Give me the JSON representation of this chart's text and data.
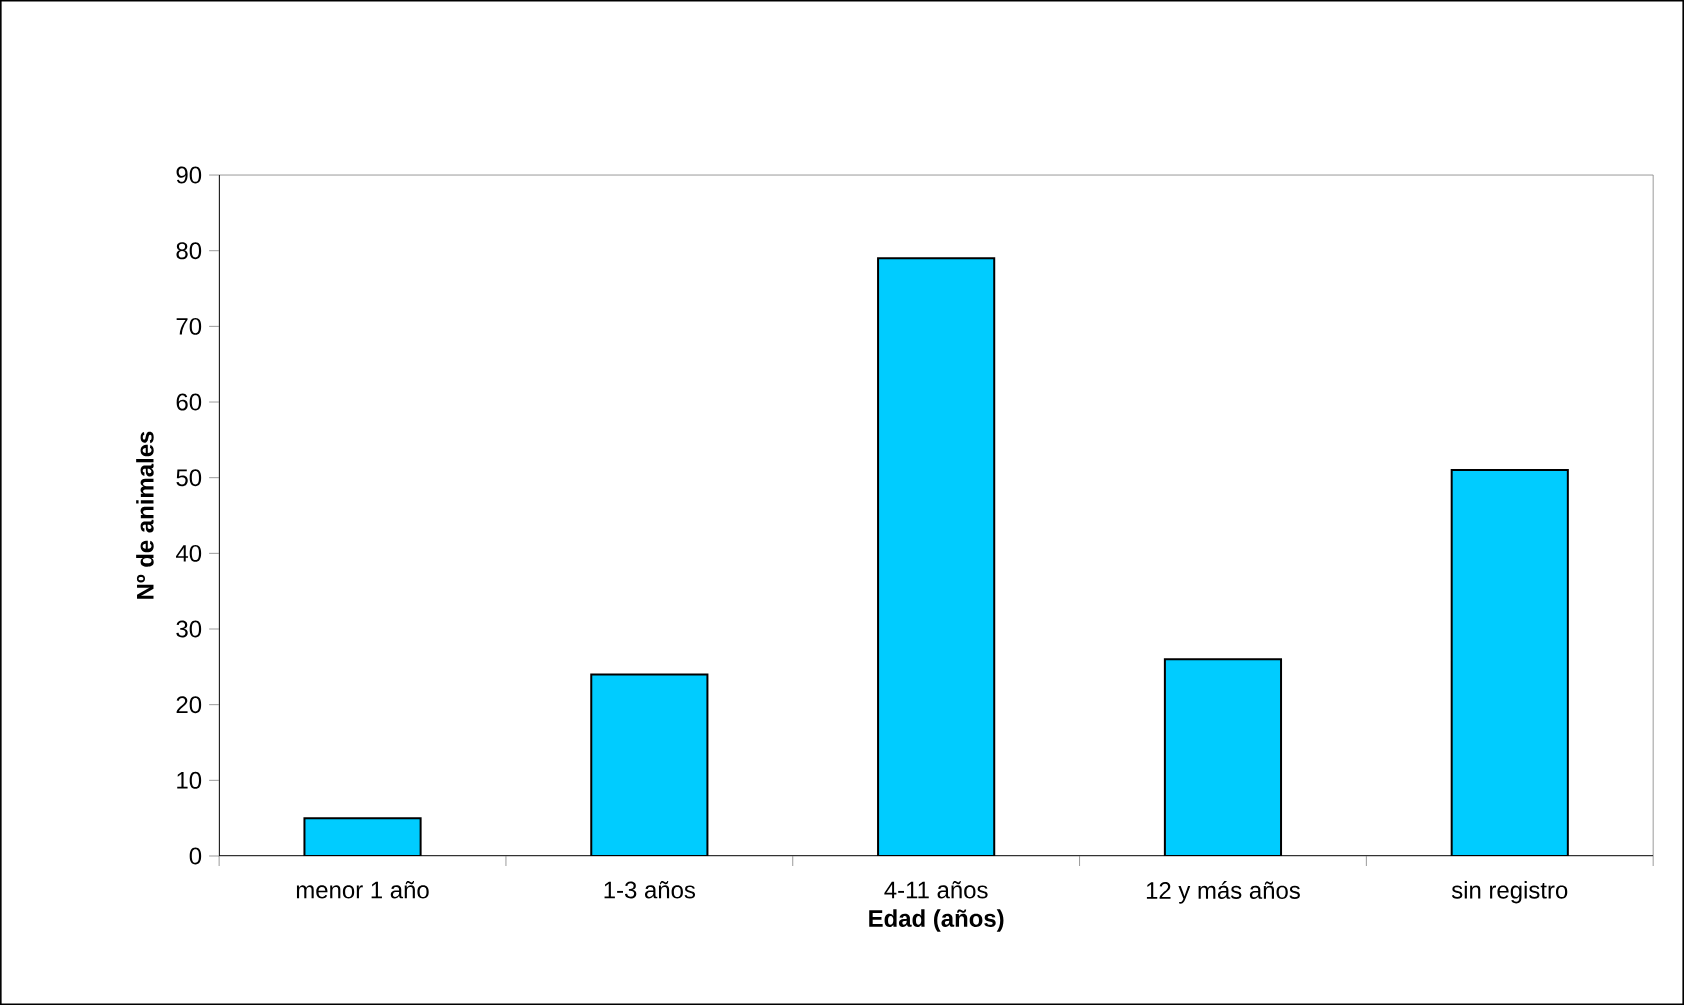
{
  "chart_data": {
    "type": "bar",
    "categories": [
      "menor 1 año",
      "1-3 años",
      "4-11 años",
      "12 y más años",
      "sin registro"
    ],
    "values": [
      5,
      24,
      79,
      26,
      51
    ],
    "color": "#00ccff",
    "xlabel": "Edad (años)",
    "ylabel": "Nº de animales",
    "ylim": [
      0,
      90
    ],
    "yticks": [
      0,
      10,
      20,
      30,
      40,
      50,
      60,
      70,
      80,
      90
    ],
    "grid": false
  }
}
